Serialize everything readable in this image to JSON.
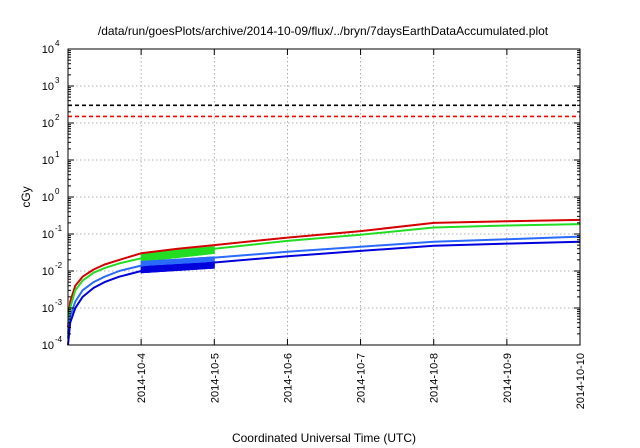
{
  "chart_data": {
    "type": "line",
    "title": "/data/run/goesPlots/archive/2014-10-09/flux/../bryn/7daysEarthDataAccumulated.plot",
    "xlabel": "Coordinated Universal Time (UTC)",
    "ylabel": "cGy",
    "y_scale": "log",
    "ylim_log10": [
      -4,
      4
    ],
    "y_tick_exponents": [
      -4,
      -3,
      -2,
      -1,
      0,
      1,
      2,
      3,
      4
    ],
    "y_tick_base": "10",
    "x_range_days": [
      3.0,
      10.0
    ],
    "x_ticks": [
      {
        "day": 4,
        "label": "2014-10-4"
      },
      {
        "day": 5,
        "label": "2014-10-5"
      },
      {
        "day": 6,
        "label": "2014-10-6"
      },
      {
        "day": 7,
        "label": "2014-10-7"
      },
      {
        "day": 8,
        "label": "2014-10-8"
      },
      {
        "day": 9,
        "label": "2014-10-9"
      },
      {
        "day": 10,
        "label": "2014-10-10"
      }
    ],
    "grid": true,
    "thresholds": [
      {
        "value": 300,
        "color": "#000000",
        "style": "dashed"
      },
      {
        "value": 150,
        "color": "#ff0000",
        "style": "dashed"
      }
    ],
    "series": [
      {
        "color": "#d40000",
        "x": [
          3.0,
          3.03,
          3.1,
          3.2,
          3.35,
          3.5,
          3.7,
          4.0,
          4.5,
          5.0,
          6.0,
          7.0,
          8.0,
          9.0,
          10.0
        ],
        "y": [
          0.0003,
          0.0015,
          0.004,
          0.007,
          0.011,
          0.015,
          0.02,
          0.03,
          0.04,
          0.05,
          0.08,
          0.12,
          0.2,
          0.22,
          0.24
        ]
      },
      {
        "color": "#22dd22",
        "x": [
          3.0,
          3.03,
          3.1,
          3.2,
          3.35,
          3.5,
          3.7,
          4.0,
          4.5,
          5.0,
          6.0,
          7.0,
          8.0,
          9.0,
          10.0
        ],
        "y": [
          0.0002,
          0.001,
          0.003,
          0.0055,
          0.009,
          0.012,
          0.016,
          0.022,
          0.03,
          0.04,
          0.065,
          0.095,
          0.15,
          0.17,
          0.185
        ]
      },
      {
        "color": "#2a6aff",
        "x": [
          3.0,
          3.03,
          3.1,
          3.2,
          3.35,
          3.5,
          3.7,
          4.0,
          4.5,
          5.0,
          6.0,
          7.0,
          8.0,
          9.0,
          10.0
        ],
        "y": [
          0.00015,
          0.0006,
          0.0015,
          0.003,
          0.005,
          0.007,
          0.01,
          0.014,
          0.019,
          0.023,
          0.033,
          0.045,
          0.062,
          0.072,
          0.085
        ]
      },
      {
        "color": "#0000dd",
        "x": [
          3.0,
          3.03,
          3.1,
          3.2,
          3.35,
          3.5,
          3.7,
          4.0,
          4.5,
          5.0,
          6.0,
          7.0,
          8.0,
          9.0,
          10.0
        ],
        "y": [
          0.0001,
          0.0004,
          0.001,
          0.002,
          0.0035,
          0.005,
          0.007,
          0.01,
          0.013,
          0.017,
          0.025,
          0.035,
          0.048,
          0.055,
          0.062
        ]
      }
    ],
    "overlay_bands": [
      {
        "color": "#22dd22",
        "x": [
          4.0,
          5.0
        ],
        "y_low": [
          0.018,
          0.03
        ],
        "y_high": [
          0.03,
          0.045
        ]
      },
      {
        "color": "#2a6aff",
        "x": [
          4.0,
          5.0
        ],
        "y_low": [
          0.011,
          0.014
        ],
        "y_high": [
          0.018,
          0.024
        ]
      },
      {
        "color": "#0000dd",
        "x": [
          4.0,
          5.0
        ],
        "y_low": [
          0.009,
          0.012
        ],
        "y_high": [
          0.013,
          0.017
        ]
      }
    ]
  }
}
